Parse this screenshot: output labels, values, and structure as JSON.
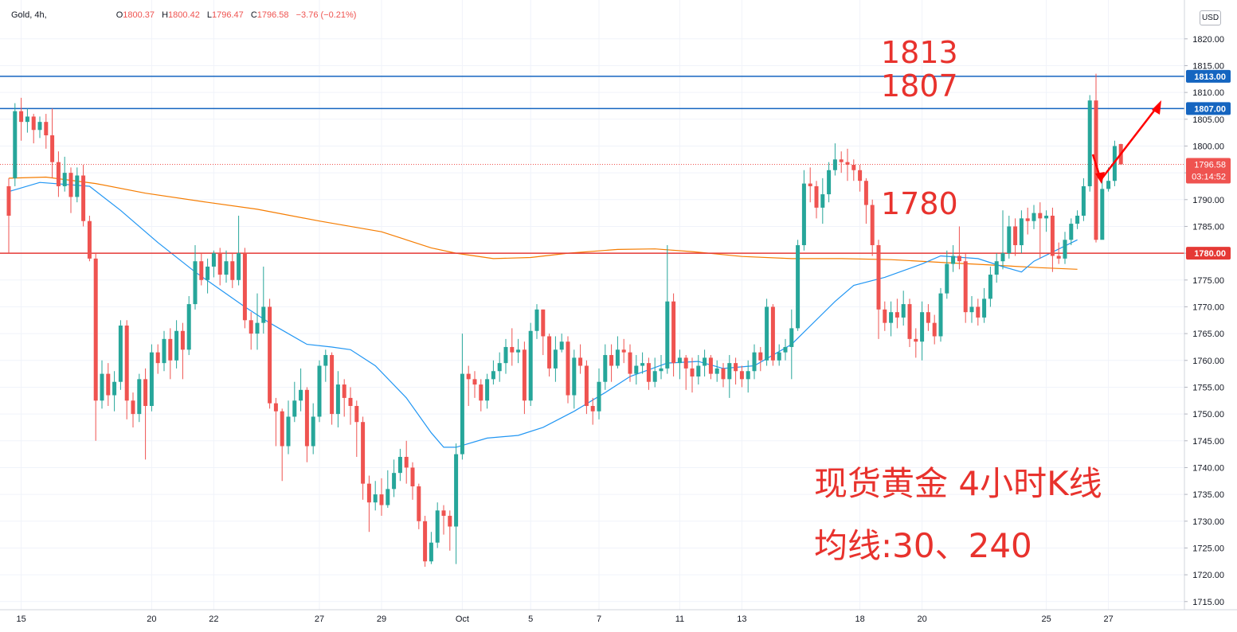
{
  "legend": {
    "symbol": "Gold, 4h,",
    "open_label": "O",
    "open": "1800.37",
    "high_label": "H",
    "high": "1800.42",
    "low_label": "L",
    "low": "1796.47",
    "close_label": "C",
    "close": "1796.58",
    "change": "−3.76 (−0.21%)"
  },
  "currency_button": "USD",
  "annotations": {
    "level_1813": "1813",
    "level_1807": "1807",
    "level_1780": "1780",
    "title_line1": "现货黄金 4小时K线",
    "title_line2": "均线:30、240"
  },
  "colors": {
    "up": "#26a69a",
    "down": "#ef5350",
    "ma30": "#2196f3",
    "ma240": "#f57c00",
    "hline_blue": "#1565c0",
    "hline_red": "#e53935",
    "annotation": "#e8322d",
    "arrow": "#ff0000"
  },
  "chart_data": {
    "type": "candlestick",
    "title": "Gold, 4h",
    "ylim": [
      1712.5,
      1822.5
    ],
    "y_ticks": [
      1715,
      1720,
      1725,
      1730,
      1735,
      1740,
      1745,
      1750,
      1755,
      1760,
      1765,
      1770,
      1775,
      1780,
      1785,
      1790,
      1795,
      1800,
      1805,
      1810,
      1815,
      1820
    ],
    "x_labels": [
      "15",
      "20",
      "22",
      "27",
      "29",
      "Oct",
      "5",
      "7",
      "11",
      "13",
      "18",
      "20",
      "25",
      "27"
    ],
    "x_label_index": [
      2,
      23,
      33,
      50,
      60,
      73,
      84,
      95,
      108,
      118,
      137,
      147,
      167,
      177
    ],
    "horizontal_lines": [
      {
        "price": 1813.0,
        "label": "1813.00",
        "color": "#1565c0"
      },
      {
        "price": 1807.0,
        "label": "1807.00",
        "color": "#1565c0"
      },
      {
        "price": 1780.0,
        "label": "1780.00",
        "color": "#e53935"
      }
    ],
    "last_price": {
      "price": 1796.58,
      "label": "1796.58",
      "countdown": "03:14:52"
    },
    "candles": [
      [
        1792.5,
        1787.0,
        1794.0,
        1780.0
      ],
      [
        1794.0,
        1806.5,
        1808.0,
        1792.5
      ],
      [
        1806.5,
        1804.5,
        1809.0,
        1801.0
      ],
      [
        1804.5,
        1805.5,
        1807.0,
        1802.5
      ],
      [
        1805.5,
        1803.0,
        1806.0,
        1800.5
      ],
      [
        1803.0,
        1804.5,
        1805.5,
        1801.5
      ],
      [
        1804.5,
        1802.0,
        1806.0,
        1799.5
      ],
      [
        1802.0,
        1797.0,
        1807.0,
        1794.0
      ],
      [
        1797.0,
        1792.5,
        1799.0,
        1790.5
      ],
      [
        1792.5,
        1795.0,
        1798.0,
        1791.5
      ],
      [
        1795.0,
        1790.5,
        1796.0,
        1787.5
      ],
      [
        1790.5,
        1794.5,
        1796.0,
        1789.5
      ],
      [
        1794.5,
        1786.0,
        1796.5,
        1785.0
      ],
      [
        1786.0,
        1779.0,
        1787.0,
        1778.5
      ],
      [
        1779.0,
        1752.5,
        1780.0,
        1745.0
      ],
      [
        1752.5,
        1757.5,
        1760.0,
        1751.0
      ],
      [
        1757.5,
        1753.5,
        1759.5,
        1751.5
      ],
      [
        1753.5,
        1756.0,
        1758.0,
        1750.5
      ],
      [
        1756.0,
        1766.5,
        1767.5,
        1754.5
      ],
      [
        1766.5,
        1752.5,
        1767.5,
        1749.0
      ],
      [
        1752.5,
        1750.0,
        1754.0,
        1747.5
      ],
      [
        1750.0,
        1756.5,
        1757.5,
        1748.5
      ],
      [
        1756.5,
        1751.5,
        1758.5,
        1741.5
      ],
      [
        1751.5,
        1761.5,
        1763.0,
        1750.5
      ],
      [
        1761.5,
        1759.5,
        1763.0,
        1757.5
      ],
      [
        1759.5,
        1764.0,
        1765.5,
        1758.0
      ],
      [
        1764.0,
        1760.0,
        1766.0,
        1756.5
      ],
      [
        1760.0,
        1765.5,
        1767.5,
        1758.5
      ],
      [
        1765.5,
        1762.0,
        1767.0,
        1756.5
      ],
      [
        1762.0,
        1770.5,
        1772.0,
        1761.0
      ],
      [
        1770.5,
        1778.5,
        1781.5,
        1769.5
      ],
      [
        1778.5,
        1775.0,
        1780.0,
        1774.0
      ],
      [
        1775.0,
        1777.5,
        1779.0,
        1772.5
      ],
      [
        1777.5,
        1780.0,
        1780.5,
        1775.5
      ],
      [
        1780.0,
        1776.0,
        1781.0,
        1774.0
      ],
      [
        1776.0,
        1778.5,
        1780.5,
        1774.5
      ],
      [
        1778.5,
        1775.0,
        1780.0,
        1773.5
      ],
      [
        1775.0,
        1780.0,
        1787.0,
        1774.0
      ],
      [
        1780.0,
        1767.5,
        1781.0,
        1766.0
      ],
      [
        1767.5,
        1765.0,
        1769.0,
        1762.0
      ],
      [
        1765.0,
        1767.0,
        1772.5,
        1762.0
      ],
      [
        1767.0,
        1770.0,
        1777.5,
        1765.0
      ],
      [
        1770.0,
        1752.0,
        1771.5,
        1751.0
      ],
      [
        1752.0,
        1750.5,
        1753.0,
        1744.0
      ],
      [
        1750.5,
        1744.0,
        1751.0,
        1737.5
      ],
      [
        1744.0,
        1749.5,
        1752.5,
        1742.5
      ],
      [
        1749.5,
        1752.5,
        1756.0,
        1748.5
      ],
      [
        1752.5,
        1754.5,
        1758.5,
        1750.5
      ],
      [
        1754.5,
        1744.0,
        1755.0,
        1741.0
      ],
      [
        1744.0,
        1749.5,
        1752.0,
        1742.5
      ],
      [
        1749.5,
        1759.0,
        1760.0,
        1748.5
      ],
      [
        1759.0,
        1761.0,
        1762.0,
        1756.0
      ],
      [
        1761.0,
        1750.0,
        1761.5,
        1748.0
      ],
      [
        1750.0,
        1755.5,
        1758.0,
        1747.5
      ],
      [
        1755.5,
        1753.0,
        1756.5,
        1749.5
      ],
      [
        1753.0,
        1751.5,
        1755.0,
        1748.0
      ],
      [
        1751.5,
        1748.5,
        1752.5,
        1742.0
      ],
      [
        1748.5,
        1737.0,
        1749.5,
        1734.0
      ],
      [
        1737.0,
        1733.5,
        1738.5,
        1728.0
      ],
      [
        1733.5,
        1735.0,
        1737.5,
        1732.0
      ],
      [
        1735.0,
        1733.0,
        1738.0,
        1731.0
      ],
      [
        1733.0,
        1736.0,
        1739.5,
        1732.5
      ],
      [
        1736.0,
        1739.0,
        1741.5,
        1734.5
      ],
      [
        1739.0,
        1742.0,
        1743.5,
        1737.5
      ],
      [
        1742.0,
        1740.0,
        1745.0,
        1737.0
      ],
      [
        1740.0,
        1736.5,
        1741.0,
        1734.0
      ],
      [
        1736.5,
        1730.0,
        1737.0,
        1728.5
      ],
      [
        1730.0,
        1722.5,
        1731.0,
        1721.5
      ],
      [
        1722.5,
        1726.0,
        1728.0,
        1722.0
      ],
      [
        1726.0,
        1732.0,
        1733.5,
        1725.0
      ],
      [
        1732.0,
        1731.0,
        1733.0,
        1727.5
      ],
      [
        1731.0,
        1729.0,
        1732.0,
        1724.5
      ],
      [
        1729.0,
        1742.5,
        1744.5,
        1722.0
      ],
      [
        1742.5,
        1757.5,
        1765.0,
        1741.5
      ],
      [
        1757.5,
        1756.5,
        1759.0,
        1751.5
      ],
      [
        1756.5,
        1755.5,
        1758.0,
        1753.0
      ],
      [
        1755.5,
        1752.5,
        1756.5,
        1750.5
      ],
      [
        1752.5,
        1756.5,
        1757.5,
        1751.0
      ],
      [
        1756.5,
        1758.0,
        1760.0,
        1755.5
      ],
      [
        1758.0,
        1759.5,
        1761.5,
        1756.0
      ],
      [
        1759.5,
        1762.5,
        1764.0,
        1757.5
      ],
      [
        1762.5,
        1761.5,
        1766.0,
        1759.0
      ],
      [
        1761.5,
        1762.0,
        1764.0,
        1759.5
      ],
      [
        1762.0,
        1752.5,
        1763.5,
        1750.0
      ],
      [
        1752.5,
        1765.5,
        1767.0,
        1751.5
      ],
      [
        1765.5,
        1769.5,
        1770.5,
        1764.0
      ],
      [
        1769.5,
        1764.5,
        1769.5,
        1761.0
      ],
      [
        1764.5,
        1758.5,
        1765.0,
        1757.0
      ],
      [
        1758.5,
        1762.0,
        1764.5,
        1756.0
      ],
      [
        1762.0,
        1763.5,
        1765.0,
        1761.5
      ],
      [
        1763.5,
        1753.5,
        1764.5,
        1752.0
      ],
      [
        1753.5,
        1760.5,
        1762.0,
        1751.0
      ],
      [
        1760.5,
        1759.0,
        1763.0,
        1757.5
      ],
      [
        1759.0,
        1751.5,
        1760.0,
        1750.0
      ],
      [
        1751.5,
        1750.5,
        1753.0,
        1748.0
      ],
      [
        1750.5,
        1756.0,
        1758.5,
        1749.0
      ],
      [
        1756.0,
        1761.0,
        1763.0,
        1754.5
      ],
      [
        1761.0,
        1759.0,
        1763.0,
        1756.0
      ],
      [
        1759.0,
        1762.0,
        1764.5,
        1758.5
      ],
      [
        1762.0,
        1761.5,
        1764.0,
        1759.5
      ],
      [
        1761.5,
        1757.5,
        1763.0,
        1756.0
      ],
      [
        1757.5,
        1759.0,
        1761.0,
        1755.5
      ],
      [
        1759.0,
        1759.5,
        1761.5,
        1757.5
      ],
      [
        1759.5,
        1756.0,
        1760.5,
        1754.5
      ],
      [
        1756.0,
        1758.0,
        1760.5,
        1755.0
      ],
      [
        1758.0,
        1758.5,
        1761.0,
        1756.5
      ],
      [
        1758.5,
        1771.0,
        1781.5,
        1757.5
      ],
      [
        1771.0,
        1759.5,
        1772.5,
        1757.0
      ],
      [
        1759.5,
        1760.5,
        1762.0,
        1756.5
      ],
      [
        1760.5,
        1758.5,
        1761.0,
        1754.5
      ],
      [
        1758.5,
        1757.0,
        1760.5,
        1754.0
      ],
      [
        1757.0,
        1759.0,
        1761.0,
        1755.5
      ],
      [
        1759.0,
        1760.5,
        1762.0,
        1757.0
      ],
      [
        1760.5,
        1757.5,
        1761.0,
        1756.5
      ],
      [
        1757.5,
        1758.5,
        1760.0,
        1756.0
      ],
      [
        1758.5,
        1756.5,
        1759.5,
        1755.0
      ],
      [
        1756.5,
        1759.5,
        1761.0,
        1753.0
      ],
      [
        1759.5,
        1758.0,
        1760.5,
        1755.5
      ],
      [
        1758.0,
        1756.5,
        1759.0,
        1755.0
      ],
      [
        1756.5,
        1758.0,
        1760.0,
        1754.0
      ],
      [
        1758.0,
        1761.5,
        1763.0,
        1756.5
      ],
      [
        1761.5,
        1760.0,
        1762.5,
        1758.0
      ],
      [
        1760.0,
        1770.0,
        1771.5,
        1759.0
      ],
      [
        1770.0,
        1760.0,
        1770.5,
        1759.0
      ],
      [
        1760.0,
        1761.5,
        1763.0,
        1759.0
      ],
      [
        1761.5,
        1762.5,
        1764.0,
        1760.0
      ],
      [
        1762.5,
        1766.0,
        1769.5,
        1756.5
      ],
      [
        1766.0,
        1781.5,
        1782.5,
        1765.5
      ],
      [
        1781.5,
        1793.0,
        1795.5,
        1780.5
      ],
      [
        1793.0,
        1792.5,
        1796.0,
        1789.5
      ],
      [
        1792.5,
        1788.5,
        1793.5,
        1786.5
      ],
      [
        1788.5,
        1791.0,
        1794.0,
        1785.5
      ],
      [
        1791.0,
        1795.5,
        1797.0,
        1789.5
      ],
      [
        1795.5,
        1797.5,
        1800.5,
        1794.5
      ],
      [
        1797.5,
        1797.0,
        1799.0,
        1795.0
      ],
      [
        1797.0,
        1796.5,
        1799.5,
        1793.5
      ],
      [
        1796.5,
        1795.5,
        1797.5,
        1793.5
      ],
      [
        1795.5,
        1793.5,
        1796.5,
        1791.5
      ],
      [
        1793.5,
        1789.0,
        1794.0,
        1785.5
      ],
      [
        1789.0,
        1781.5,
        1790.0,
        1779.5
      ],
      [
        1781.5,
        1769.5,
        1782.5,
        1764.0
      ],
      [
        1769.5,
        1767.0,
        1771.0,
        1765.5
      ],
      [
        1767.0,
        1769.0,
        1771.0,
        1764.5
      ],
      [
        1769.0,
        1768.0,
        1771.5,
        1766.0
      ],
      [
        1768.0,
        1770.5,
        1773.0,
        1766.5
      ],
      [
        1770.5,
        1764.0,
        1771.5,
        1762.5
      ],
      [
        1764.0,
        1763.5,
        1766.0,
        1760.5
      ],
      [
        1763.5,
        1769.0,
        1771.0,
        1760.0
      ],
      [
        1769.0,
        1767.0,
        1770.5,
        1765.5
      ],
      [
        1767.0,
        1764.5,
        1768.5,
        1763.0
      ],
      [
        1764.5,
        1772.5,
        1773.5,
        1763.5
      ],
      [
        1772.5,
        1778.0,
        1780.5,
        1771.5
      ],
      [
        1778.0,
        1779.5,
        1781.5,
        1776.5
      ],
      [
        1779.5,
        1778.5,
        1785.0,
        1777.0
      ],
      [
        1778.5,
        1769.0,
        1780.0,
        1767.0
      ],
      [
        1769.0,
        1770.0,
        1772.0,
        1767.0
      ],
      [
        1770.0,
        1768.0,
        1771.5,
        1766.5
      ],
      [
        1768.0,
        1771.5,
        1773.5,
        1767.0
      ],
      [
        1771.5,
        1776.0,
        1777.5,
        1770.0
      ],
      [
        1776.0,
        1778.5,
        1780.0,
        1774.5
      ],
      [
        1778.5,
        1780.0,
        1788.0,
        1777.0
      ],
      [
        1780.0,
        1785.0,
        1787.0,
        1779.0
      ],
      [
        1785.0,
        1781.5,
        1786.5,
        1779.5
      ],
      [
        1781.5,
        1786.5,
        1788.0,
        1780.0
      ],
      [
        1786.5,
        1786.0,
        1788.5,
        1783.5
      ],
      [
        1786.0,
        1787.5,
        1789.0,
        1784.5
      ],
      [
        1787.5,
        1786.5,
        1789.5,
        1779.0
      ],
      [
        1786.5,
        1787.0,
        1788.0,
        1784.0
      ],
      [
        1787.0,
        1779.5,
        1788.5,
        1776.5
      ],
      [
        1779.5,
        1779.0,
        1782.0,
        1778.0
      ],
      [
        1779.0,
        1782.5,
        1784.0,
        1778.0
      ],
      [
        1782.5,
        1785.5,
        1786.5,
        1781.5
      ],
      [
        1785.5,
        1787.0,
        1788.0,
        1784.5
      ],
      [
        1787.0,
        1792.5,
        1794.0,
        1786.0
      ],
      [
        1792.5,
        1808.5,
        1809.5,
        1791.5
      ],
      [
        1808.5,
        1782.5,
        1813.5,
        1782.0
      ],
      [
        1782.5,
        1792.0,
        1794.5,
        1791.0
      ],
      [
        1792.0,
        1793.5,
        1796.0,
        1791.5
      ],
      [
        1793.5,
        1800.0,
        1801.0,
        1792.5
      ],
      [
        1800.37,
        1796.58,
        1800.42,
        1796.47
      ]
    ],
    "ma30_anchors": [
      [
        0,
        1791.5
      ],
      [
        5,
        1793.2
      ],
      [
        13,
        1792.5
      ],
      [
        18,
        1788.0
      ],
      [
        24,
        1782.0
      ],
      [
        30,
        1776.5
      ],
      [
        38,
        1770.0
      ],
      [
        42,
        1767.0
      ],
      [
        48,
        1763.0
      ],
      [
        52,
        1762.5
      ],
      [
        55,
        1762.0
      ],
      [
        59,
        1759.0
      ],
      [
        64,
        1753.0
      ],
      [
        68,
        1746.5
      ],
      [
        70,
        1743.8
      ],
      [
        72,
        1743.8
      ],
      [
        77,
        1745.5
      ],
      [
        82,
        1746.0
      ],
      [
        86,
        1747.5
      ],
      [
        91,
        1750.5
      ],
      [
        96,
        1754.0
      ],
      [
        100,
        1757.0
      ],
      [
        106,
        1759.5
      ],
      [
        111,
        1759.8
      ],
      [
        115,
        1758.5
      ],
      [
        120,
        1759.0
      ],
      [
        126,
        1763.0
      ],
      [
        133,
        1771.0
      ],
      [
        136,
        1774.0
      ],
      [
        141,
        1775.5
      ],
      [
        147,
        1778.0
      ],
      [
        150,
        1779.5
      ],
      [
        156,
        1779.0
      ],
      [
        160,
        1777.5
      ],
      [
        163,
        1776.5
      ],
      [
        165,
        1778.5
      ],
      [
        172,
        1782.5
      ]
    ],
    "ma240_anchors": [
      [
        0,
        1794.0
      ],
      [
        6,
        1794.2
      ],
      [
        14,
        1793.0
      ],
      [
        22,
        1791.2
      ],
      [
        32,
        1789.5
      ],
      [
        40,
        1788.2
      ],
      [
        50,
        1786.0
      ],
      [
        60,
        1784.0
      ],
      [
        68,
        1781.0
      ],
      [
        72,
        1780.0
      ],
      [
        78,
        1779.0
      ],
      [
        84,
        1779.2
      ],
      [
        90,
        1780.0
      ],
      [
        98,
        1780.7
      ],
      [
        104,
        1780.8
      ],
      [
        110,
        1780.3
      ],
      [
        118,
        1779.4
      ],
      [
        126,
        1779.0
      ],
      [
        134,
        1779.0
      ],
      [
        142,
        1778.8
      ],
      [
        150,
        1778.3
      ],
      [
        158,
        1777.8
      ],
      [
        166,
        1777.3
      ],
      [
        172,
        1777.0
      ]
    ]
  }
}
